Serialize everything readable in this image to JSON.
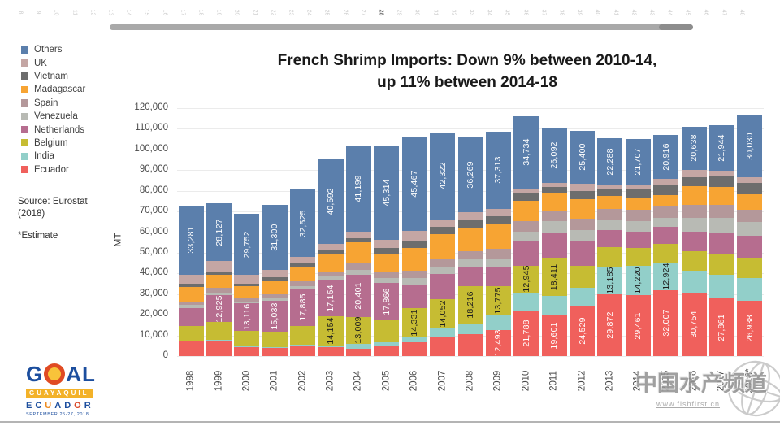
{
  "viewer": {
    "page_numbers": [
      8,
      9,
      10,
      11,
      12,
      13,
      14,
      15,
      16,
      17,
      18,
      19,
      20,
      21,
      22,
      23,
      24,
      25,
      26,
      27,
      28,
      29,
      30,
      31,
      32,
      33,
      34,
      35,
      36,
      37,
      38,
      39,
      40,
      41,
      42,
      43,
      44,
      45,
      46,
      47,
      48
    ],
    "highlighted_page": 28
  },
  "title": {
    "line1": "French Shrimp Imports: Down 9% between 2010-14,",
    "line2": "up 11% between 2014-18"
  },
  "panel": {
    "source_line1": "Source: Eurostat",
    "source_line2": "(2018)",
    "estimate_note": "*Estimate"
  },
  "chart_data": {
    "type": "bar",
    "stacked": true,
    "title": "French Shrimp Imports: Down 9% between 2010-14, up 11% between 2014-18",
    "xlabel": "",
    "ylabel": "MT",
    "ylim": [
      0,
      120000
    ],
    "ytick_step": 10000,
    "ytick_labels": [
      "120,000",
      "110,000",
      "100,000",
      "90,000",
      "80,000",
      "70,000",
      "60,000",
      "50,000",
      "40,000",
      "30,000",
      "20,000",
      "10,000",
      "0"
    ],
    "grid": true,
    "legend_position": "left",
    "data_label_threshold": 12400,
    "categories": [
      "1998",
      "1999",
      "2000",
      "2001",
      "2002",
      "2003",
      "2004",
      "2005",
      "2006",
      "2007",
      "2008",
      "2009",
      "2010",
      "2011",
      "2012",
      "2013",
      "2014",
      "2015",
      "2016",
      "2017",
      "2018*"
    ],
    "series": [
      {
        "name": "Ecuador",
        "color": "#f0605c",
        "label_color": "#ffffff",
        "values": [
          7000,
          7500,
          4500,
          4000,
          5000,
          4500,
          3500,
          5000,
          6500,
          9000,
          10500,
          12493,
          21788,
          19601,
          24529,
          29872,
          29461,
          32007,
          30754,
          27861,
          26938
        ]
      },
      {
        "name": "India",
        "color": "#92cfc9",
        "label_color": "#1e1e1e",
        "values": [
          400,
          400,
          300,
          300,
          500,
          700,
          2500,
          1500,
          2500,
          4500,
          5000,
          7500,
          9000,
          9500,
          8500,
          13185,
          14220,
          12924,
          10500,
          11500,
          11000
        ]
      },
      {
        "name": "Belgium",
        "color": "#c6bc33",
        "label_color": "#1e1e1e",
        "values": [
          7000,
          8500,
          7500,
          7500,
          9000,
          14154,
          13009,
          11000,
          14331,
          14052,
          18216,
          13775,
          12945,
          18411,
          10500,
          9500,
          8500,
          9500,
          9500,
          10000,
          9500
        ]
      },
      {
        "name": "Netherlands",
        "color": "#b66d8f",
        "label_color": "#ffffff",
        "values": [
          9000,
          12925,
          13116,
          15033,
          17885,
          17154,
          20401,
          17866,
          11500,
          12000,
          9500,
          9500,
          12000,
          12000,
          12000,
          8500,
          8000,
          8000,
          9500,
          10500,
          11000
        ]
      },
      {
        "name": "Venezuela",
        "color": "#b8bab4",
        "label_color": "#1e1e1e",
        "values": [
          1300,
          1300,
          1000,
          1200,
          1500,
          2000,
          2500,
          2500,
          3000,
          3500,
          3500,
          4000,
          4500,
          6000,
          5500,
          4500,
          5000,
          4500,
          6500,
          7000,
          6500
        ]
      },
      {
        "name": "Spain",
        "color": "#b4989a",
        "label_color": "#1e1e1e",
        "values": [
          1800,
          2300,
          1800,
          2000,
          2500,
          2500,
          3000,
          3000,
          3500,
          4000,
          4000,
          4500,
          5000,
          5000,
          5500,
          5500,
          5500,
          5500,
          6500,
          6500,
          6000
        ]
      },
      {
        "name": "Madagascar",
        "color": "#f7a433",
        "label_color": "#1e1e1e",
        "values": [
          7000,
          6500,
          5500,
          6000,
          7000,
          8500,
          10000,
          8500,
          11200,
          12000,
          11500,
          12000,
          10000,
          8500,
          9500,
          6500,
          6000,
          5500,
          9000,
          8500,
          7500
        ]
      },
      {
        "name": "Vietnam",
        "color": "#6d6d6d",
        "label_color": "#ffffff",
        "values": [
          1500,
          1500,
          1300,
          2200,
          1600,
          1500,
          2000,
          3000,
          3500,
          3500,
          3500,
          4000,
          3500,
          3000,
          4000,
          3500,
          4500,
          5000,
          4500,
          5000,
          5500
        ]
      },
      {
        "name": "UK",
        "color": "#c4a6a4",
        "label_color": "#1e1e1e",
        "values": [
          4500,
          5000,
          4200,
          3500,
          3000,
          3500,
          3500,
          4000,
          4500,
          3500,
          4000,
          3500,
          2500,
          2000,
          3500,
          2000,
          2000,
          3000,
          3500,
          3000,
          2500
        ]
      },
      {
        "name": "Others",
        "color": "#5b7fac",
        "label_color": "#ffffff",
        "values": [
          33281,
          28127,
          29752,
          31300,
          32525,
          40592,
          41199,
          45314,
          45467,
          42322,
          36269,
          37313,
          34734,
          26092,
          25400,
          22288,
          21707,
          20916,
          20638,
          21944,
          30030
        ]
      }
    ]
  },
  "watermark": {
    "text": "中国水产频道",
    "url": "www.fishfirst.cn"
  },
  "logo": {
    "word": "GOAL",
    "city": "GUAYAQUIL",
    "country_letters": [
      {
        "ch": "E",
        "color": "#1c4e9e"
      },
      {
        "ch": "C",
        "color": "#1c4e9e"
      },
      {
        "ch": "U",
        "color": "#ef8b1f"
      },
      {
        "ch": "A",
        "color": "#1c4e9e"
      },
      {
        "ch": "D",
        "color": "#1c4e9e"
      },
      {
        "ch": "O",
        "color": "#d94626"
      },
      {
        "ch": "R",
        "color": "#1c4e9e"
      }
    ],
    "date": "SEPTEMBER 25-27, 2018"
  }
}
